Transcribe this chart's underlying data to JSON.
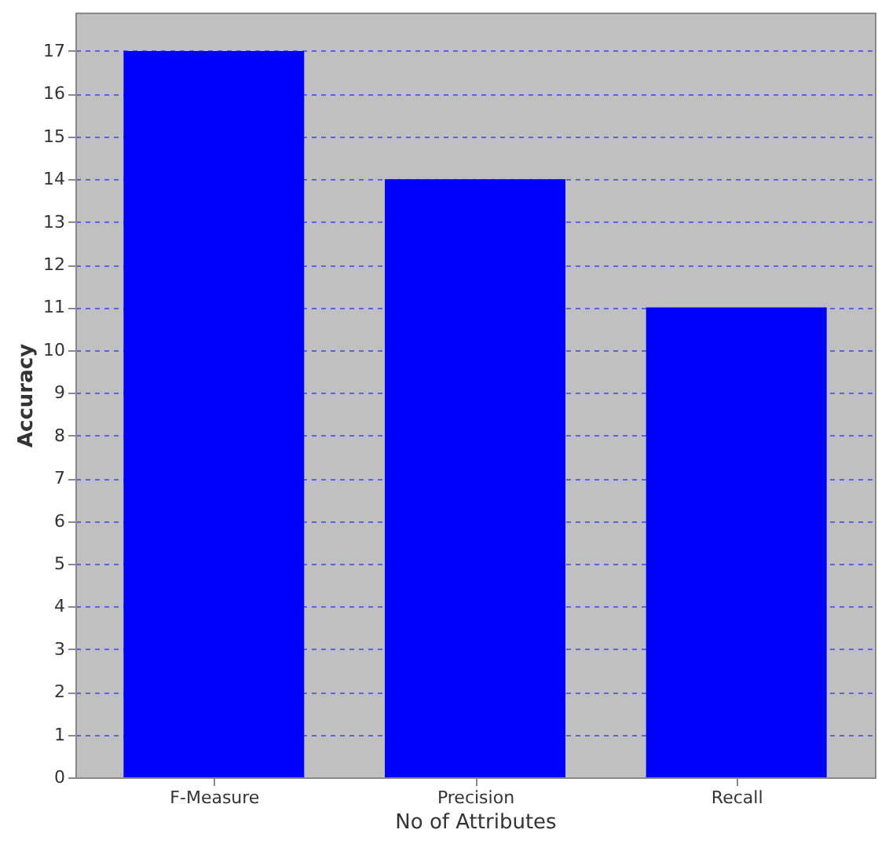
{
  "chart_data": {
    "type": "bar",
    "xlabel": "No of Attributes",
    "ylabel": "Accuracy",
    "categories": [
      "F-Measure",
      "Precision",
      "Recall"
    ],
    "values": [
      17,
      14,
      11
    ],
    "color": "#0000ff",
    "ylim": [
      0,
      17.9
    ],
    "yticks": [
      0,
      1,
      2,
      3,
      4,
      5,
      6,
      7,
      8,
      9,
      10,
      11,
      12,
      13,
      14,
      15,
      16,
      17
    ],
    "grid": "y"
  }
}
